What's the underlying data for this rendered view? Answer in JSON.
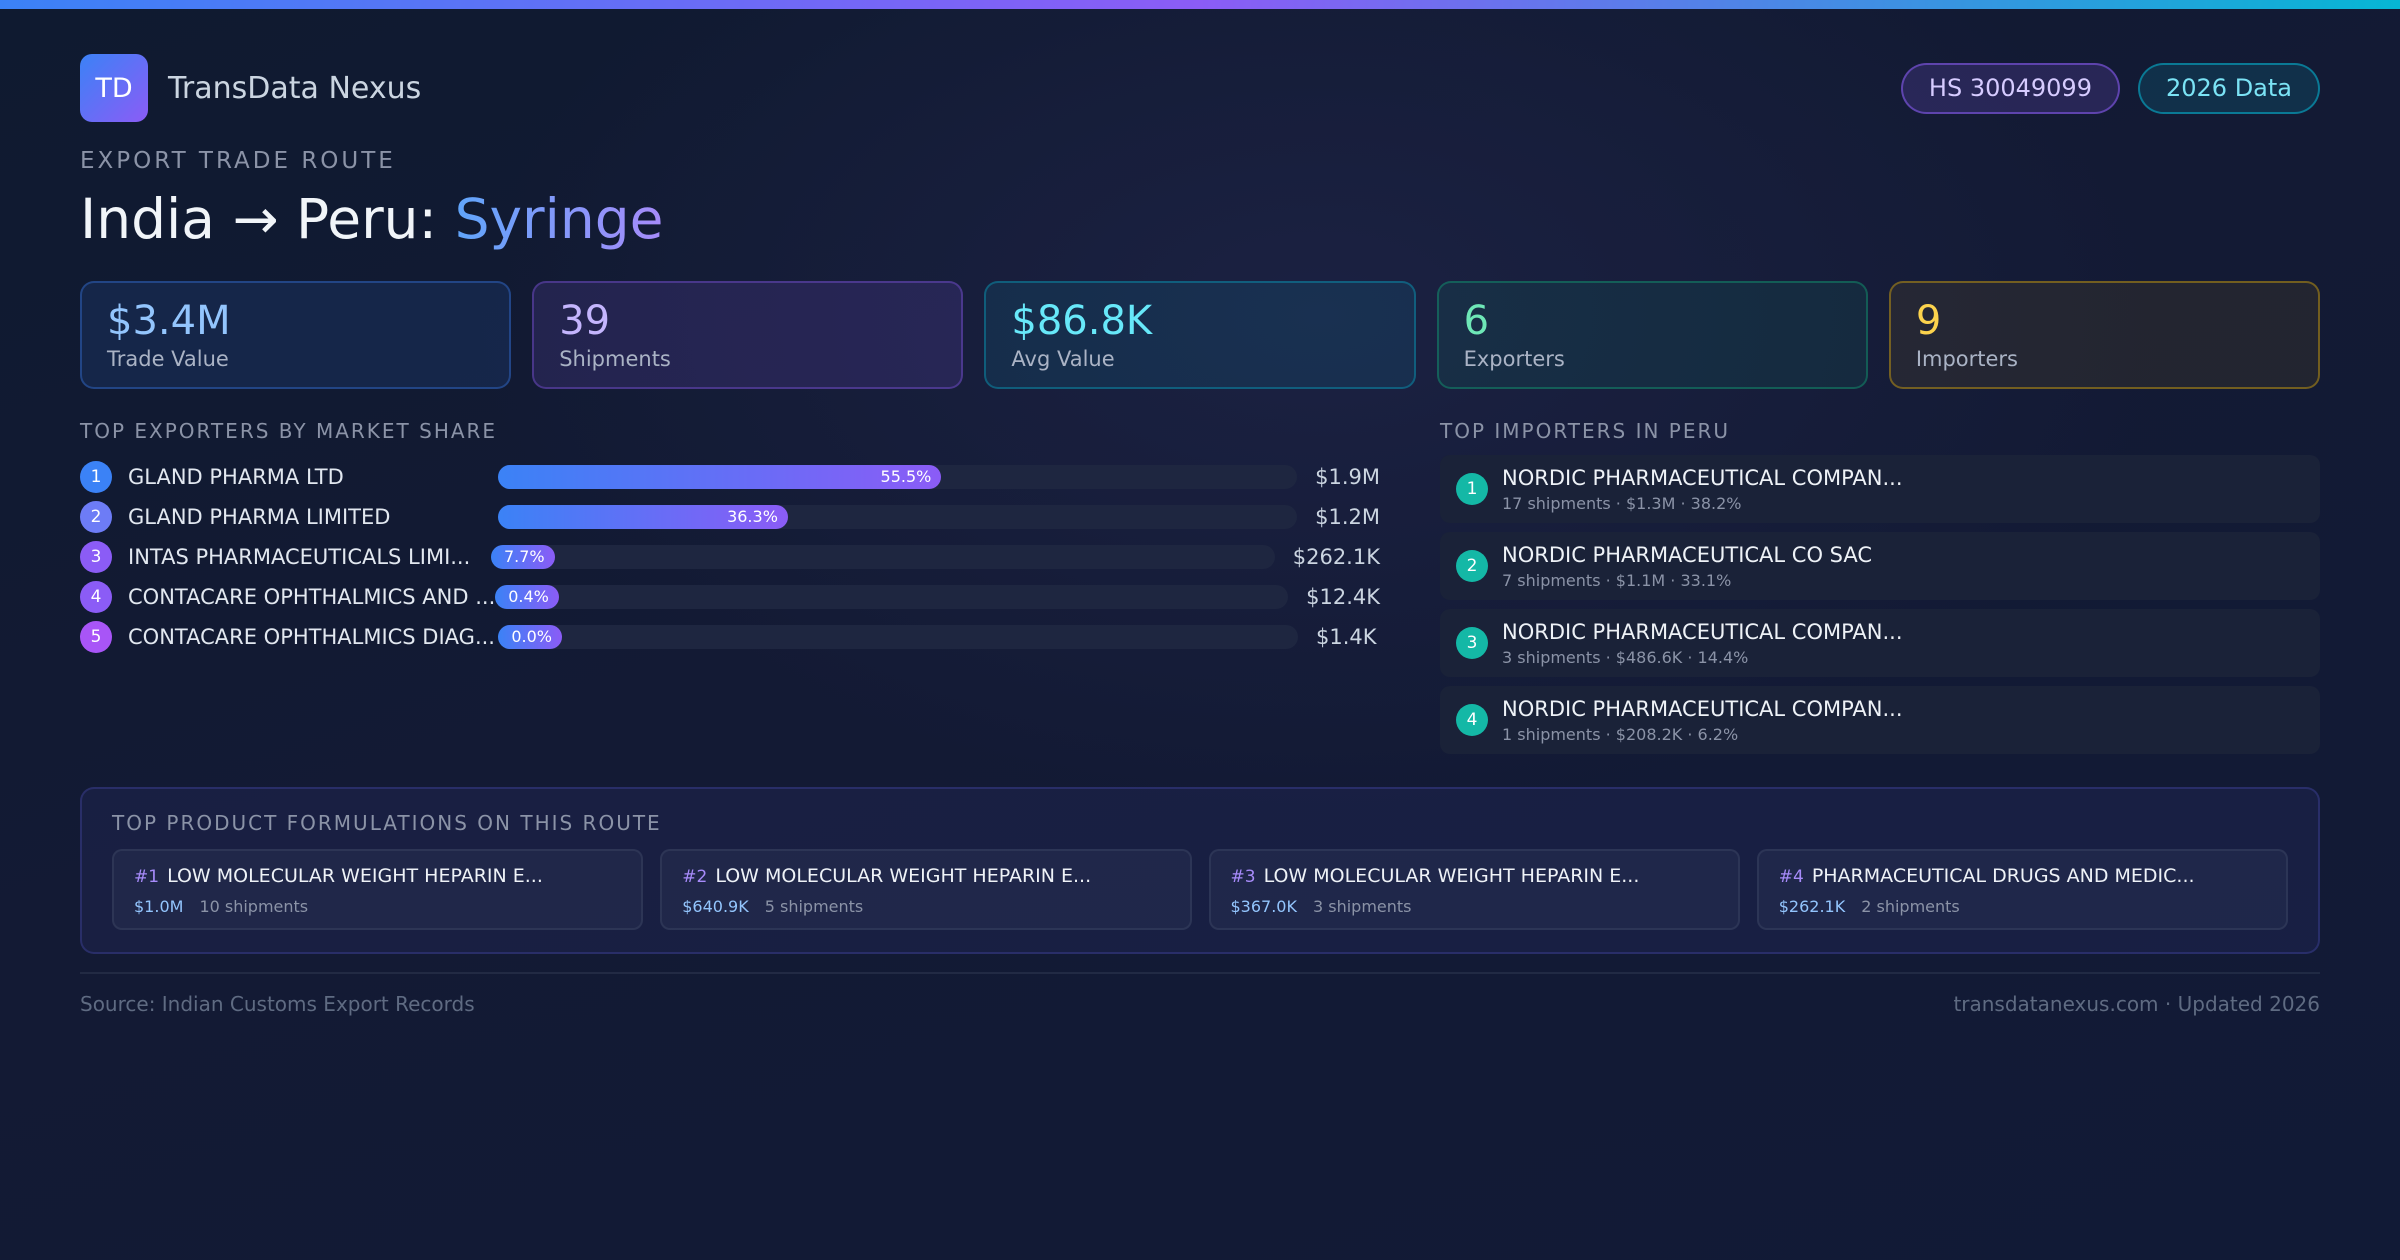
{
  "brand": {
    "logo_text": "TD",
    "name": "TransData Nexus"
  },
  "badges": {
    "hs_code": "HS 30049099",
    "year": "2026 Data"
  },
  "route": {
    "eyebrow": "EXPORT TRADE ROUTE",
    "title_prefix": "India → Peru: ",
    "product": "Syringe"
  },
  "stats": [
    {
      "value": "$3.4M",
      "label": "Trade Value"
    },
    {
      "value": "39",
      "label": "Shipments"
    },
    {
      "value": "$86.8K",
      "label": "Avg Value"
    },
    {
      "value": "6",
      "label": "Exporters"
    },
    {
      "value": "9",
      "label": "Importers"
    }
  ],
  "exporters": {
    "title": "TOP EXPORTERS BY MARKET SHARE",
    "items": [
      {
        "rank": "1",
        "name": "GLAND PHARMA LTD",
        "share_pct": 55.5,
        "share_label": "55.5%",
        "value": "$1.9M",
        "rank_color": "#3b82f6"
      },
      {
        "rank": "2",
        "name": "GLAND PHARMA LIMITED",
        "share_pct": 36.3,
        "share_label": "36.3%",
        "value": "$1.2M",
        "rank_color": "#6d7cf6"
      },
      {
        "rank": "3",
        "name": "INTAS PHARMACEUTICALS LIMI...",
        "share_pct": 7.7,
        "share_label": "7.7%",
        "value": "$262.1K",
        "rank_color": "#8b5cf6"
      },
      {
        "rank": "4",
        "name": "CONTACARE OPHTHALMICS AND ...",
        "share_pct": 0.4,
        "share_label": "0.4%",
        "value": "$12.4K",
        "rank_color": "#8b5cf6"
      },
      {
        "rank": "5",
        "name": "CONTACARE OPHTHALMICS DIAG...",
        "share_pct": 0.0,
        "share_label": "0.0%",
        "value": "$1.4K",
        "rank_color": "#a855f7"
      }
    ]
  },
  "importers": {
    "title": "TOP IMPORTERS IN PERU",
    "items": [
      {
        "rank": "1",
        "name": "NORDIC PHARMACEUTICAL COMPAN...",
        "meta": "17 shipments · $1.3M · 38.2%"
      },
      {
        "rank": "2",
        "name": "NORDIC PHARMACEUTICAL CO SAC",
        "meta": "7 shipments · $1.1M · 33.1%"
      },
      {
        "rank": "3",
        "name": "NORDIC PHARMACEUTICAL COMPAN...",
        "meta": "3 shipments · $486.6K · 14.4%"
      },
      {
        "rank": "4",
        "name": "NORDIC PHARMACEUTICAL COMPAN...",
        "meta": "1 shipments · $208.2K · 6.2%"
      }
    ]
  },
  "products": {
    "title": "TOP PRODUCT FORMULATIONS ON THIS ROUTE",
    "items": [
      {
        "num": "#1",
        "name": "LOW MOLECULAR WEIGHT HEPARIN E...",
        "value": "$1.0M",
        "shipments": "10 shipments"
      },
      {
        "num": "#2",
        "name": "LOW MOLECULAR WEIGHT HEPARIN E...",
        "value": "$640.9K",
        "shipments": "5 shipments"
      },
      {
        "num": "#3",
        "name": "LOW MOLECULAR WEIGHT HEPARIN E...",
        "value": "$367.0K",
        "shipments": "3 shipments"
      },
      {
        "num": "#4",
        "name": "PHARMACEUTICAL DRUGS AND MEDIC...",
        "value": "$262.1K",
        "shipments": "2 shipments"
      }
    ]
  },
  "footer": {
    "source": "Source: Indian Customs Export Records",
    "site": "transdatanexus.com · Updated 2026"
  }
}
